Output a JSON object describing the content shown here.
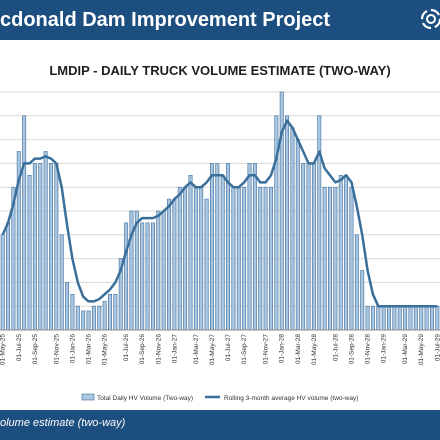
{
  "header": {
    "title": "cdonald Dam Improvement Project"
  },
  "footer": {
    "note": "olume estimate (two-way)"
  },
  "colors": {
    "header_bg": "#1c4e80",
    "bar_fill": "#a9c5df",
    "bar_stroke": "#3d6f9e",
    "line": "#3a6f9a",
    "grid": "#d9d9d9"
  },
  "icons": {
    "logo": "swirl-logo-icon"
  },
  "chart_data": {
    "type": "bar",
    "title": "LMDIP - DAILY TRUCK VOLUME ESTIMATE (TWO-WAY)",
    "xlabel": "",
    "ylabel": "",
    "ylim": [
      0,
      100
    ],
    "grid": true,
    "legend_position": "bottom",
    "x_tick_labels": [
      "01-May-25",
      "01-Jul-25",
      "01-Sep-25",
      "01-Nov-25",
      "01-Jan-26",
      "01-Mar-26",
      "01-May-26",
      "01-Jul-26",
      "01-Sep-26",
      "01-Nov-26",
      "01-Jan-27",
      "01-Mar-27",
      "01-May-27",
      "01-Jul-27",
      "01-Sep-27",
      "01-Nov-27",
      "01-Jan-28",
      "01-Mar-28",
      "01-May-28",
      "01-Jul-28",
      "01-Sep-28",
      "01-Nov-28",
      "01-Jan-29",
      "01-Mar-29",
      "01-May-29",
      "01-Jul-29"
    ],
    "series": [
      {
        "name": "Total Daily HV Volume (Two-way)",
        "type": "bar",
        "values": [
          40,
          45,
          60,
          75,
          90,
          65,
          70,
          70,
          75,
          70,
          70,
          40,
          20,
          15,
          10,
          8,
          8,
          10,
          10,
          12,
          15,
          15,
          30,
          45,
          50,
          50,
          45,
          45,
          45,
          50,
          50,
          55,
          55,
          60,
          60,
          65,
          60,
          60,
          55,
          70,
          70,
          65,
          70,
          60,
          60,
          60,
          70,
          70,
          60,
          60,
          60,
          90,
          100,
          90,
          85,
          80,
          70,
          70,
          70,
          90,
          60,
          60,
          60,
          65,
          65,
          60,
          40,
          25,
          10,
          10,
          10,
          10,
          10,
          10,
          10,
          10,
          10,
          10,
          10,
          10,
          10,
          10
        ]
      },
      {
        "name": "Rolling 3-month average HV volume (two-way)",
        "type": "line",
        "values": [
          40,
          45,
          53,
          63,
          70,
          70,
          72,
          72,
          73,
          72,
          70,
          60,
          44,
          30,
          20,
          14,
          12,
          12,
          13,
          15,
          17,
          20,
          25,
          33,
          40,
          45,
          47,
          47,
          47,
          48,
          50,
          52,
          55,
          57,
          60,
          62,
          60,
          60,
          62,
          65,
          65,
          65,
          62,
          60,
          60,
          62,
          65,
          65,
          62,
          62,
          65,
          72,
          83,
          88,
          85,
          80,
          75,
          70,
          70,
          75,
          68,
          65,
          62,
          63,
          65,
          62,
          52,
          40,
          25,
          15,
          10,
          10,
          10,
          10,
          10,
          10,
          10,
          10,
          10,
          10,
          10,
          10
        ]
      }
    ]
  }
}
